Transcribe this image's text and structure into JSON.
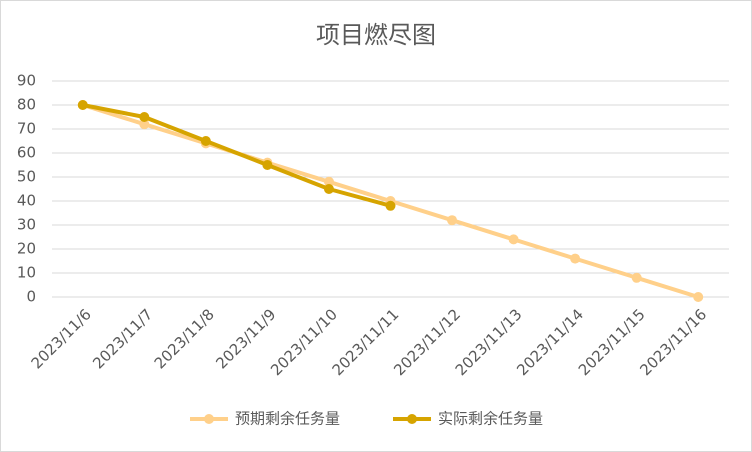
{
  "chart_data": {
    "type": "line",
    "title": "项目燃尽图",
    "categories": [
      "2023/11/6",
      "2023/11/7",
      "2023/11/8",
      "2023/11/9",
      "2023/11/10",
      "2023/11/11",
      "2023/11/12",
      "2023/11/13",
      "2023/11/14",
      "2023/11/15",
      "2023/11/16"
    ],
    "series": [
      {
        "name": "预期剩余任务量",
        "color": "#ffd08a",
        "values": [
          80,
          72,
          64,
          56,
          48,
          40,
          32,
          24,
          16,
          8,
          0
        ]
      },
      {
        "name": "实际剩余任务量",
        "color": "#d6a400",
        "values": [
          80,
          75,
          65,
          55,
          45,
          38,
          null,
          null,
          null,
          null,
          null
        ]
      }
    ],
    "ylim": [
      0,
      90
    ],
    "yticks": [
      0,
      10,
      20,
      30,
      40,
      50,
      60,
      70,
      80,
      90
    ],
    "grid": true,
    "legend": "bottom"
  }
}
